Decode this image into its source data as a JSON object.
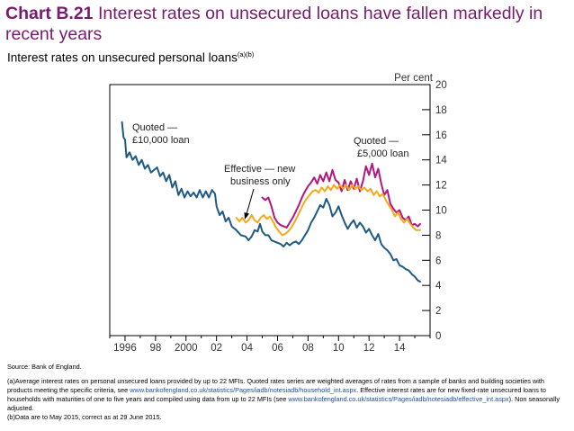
{
  "header": {
    "title_bold": "Chart B.21",
    "title_rest": " Interest rates on unsecured loans have fallen markedly in recent years",
    "subtitle": "Interest rates on unsecured personal loans",
    "subtitle_sup": "(a)(b)"
  },
  "chart_data": {
    "type": "line",
    "ylabel": "Per cent",
    "ylim": [
      0,
      20
    ],
    "yticks": [
      0,
      2,
      4,
      6,
      8,
      10,
      12,
      14,
      16,
      18,
      20
    ],
    "xlim": [
      1995,
      2016
    ],
    "xticks": [
      {
        "x": 1996,
        "label": "1996"
      },
      {
        "x": 1998,
        "label": "98"
      },
      {
        "x": 2000,
        "label": "2000"
      },
      {
        "x": 2002,
        "label": "02"
      },
      {
        "x": 2004,
        "label": "04"
      },
      {
        "x": 2006,
        "label": "06"
      },
      {
        "x": 2008,
        "label": "08"
      },
      {
        "x": 2010,
        "label": "10"
      },
      {
        "x": 2012,
        "label": "12"
      },
      {
        "x": 2014,
        "label": "14"
      }
    ],
    "annotations": {
      "quoted_10000": [
        "Quoted —",
        "£10,000 loan"
      ],
      "effective": [
        "Effective — new",
        "business only"
      ],
      "quoted_5000": [
        "Quoted —",
        "£5,000 loan"
      ]
    },
    "colors": {
      "quoted_10000": "#1f5a85",
      "quoted_5000": "#b0177f",
      "effective": "#f5a81c"
    },
    "series": [
      {
        "key": "quoted_10000",
        "points": [
          [
            1995.8,
            17.0
          ],
          [
            1995.9,
            15.8
          ],
          [
            1996.0,
            15.6
          ],
          [
            1996.1,
            14.2
          ],
          [
            1996.3,
            14.6
          ],
          [
            1996.5,
            14.0
          ],
          [
            1996.7,
            14.3
          ],
          [
            1996.9,
            13.6
          ],
          [
            1997.1,
            14.0
          ],
          [
            1997.3,
            13.3
          ],
          [
            1997.5,
            13.6
          ],
          [
            1997.7,
            13.0
          ],
          [
            1997.9,
            13.2
          ],
          [
            1998.1,
            13.4
          ],
          [
            1998.3,
            12.7
          ],
          [
            1998.5,
            13.0
          ],
          [
            1998.7,
            12.3
          ],
          [
            1998.9,
            12.8
          ],
          [
            1999.1,
            11.8
          ],
          [
            1999.3,
            12.3
          ],
          [
            1999.5,
            11.2
          ],
          [
            1999.7,
            11.7
          ],
          [
            1999.9,
            11.0
          ],
          [
            2000.1,
            11.5
          ],
          [
            2000.3,
            11.1
          ],
          [
            2000.5,
            11.4
          ],
          [
            2000.7,
            11.0
          ],
          [
            2000.9,
            11.6
          ],
          [
            2001.1,
            11.0
          ],
          [
            2001.3,
            11.5
          ],
          [
            2001.5,
            11.0
          ],
          [
            2001.7,
            11.6
          ],
          [
            2001.9,
            11.3
          ],
          [
            2002.0,
            10.3
          ],
          [
            2002.2,
            9.6
          ],
          [
            2002.4,
            9.9
          ],
          [
            2002.6,
            9.1
          ],
          [
            2002.8,
            9.4
          ],
          [
            2003.0,
            8.7
          ],
          [
            2003.3,
            8.4
          ],
          [
            2003.6,
            8.0
          ],
          [
            2003.9,
            7.9
          ],
          [
            2004.1,
            7.6
          ],
          [
            2004.3,
            7.9
          ],
          [
            2004.5,
            8.4
          ],
          [
            2004.7,
            8.3
          ],
          [
            2004.85,
            8.9
          ],
          [
            2005.0,
            8.3
          ],
          [
            2005.2,
            8.0
          ],
          [
            2005.4,
            8.0
          ],
          [
            2005.6,
            7.6
          ],
          [
            2005.8,
            7.5
          ],
          [
            2006.0,
            7.4
          ],
          [
            2006.2,
            7.3
          ],
          [
            2006.4,
            7.1
          ],
          [
            2006.6,
            7.4
          ],
          [
            2006.8,
            7.2
          ],
          [
            2007.0,
            7.4
          ],
          [
            2007.2,
            7.5
          ],
          [
            2007.4,
            7.3
          ],
          [
            2007.6,
            7.6
          ],
          [
            2007.8,
            8.0
          ],
          [
            2008.0,
            8.4
          ],
          [
            2008.2,
            9.0
          ],
          [
            2008.4,
            9.4
          ],
          [
            2008.6,
            9.9
          ],
          [
            2008.8,
            10.4
          ],
          [
            2009.0,
            10.2
          ],
          [
            2009.2,
            10.9
          ],
          [
            2009.4,
            10.4
          ],
          [
            2009.6,
            9.5
          ],
          [
            2009.8,
            9.8
          ],
          [
            2010.0,
            10.3
          ],
          [
            2010.2,
            9.6
          ],
          [
            2010.4,
            9.0
          ],
          [
            2010.6,
            8.5
          ],
          [
            2010.8,
            8.9
          ],
          [
            2011.0,
            9.2
          ],
          [
            2011.2,
            8.6
          ],
          [
            2011.4,
            9.0
          ],
          [
            2011.6,
            8.7
          ],
          [
            2011.8,
            8.2
          ],
          [
            2012.0,
            8.5
          ],
          [
            2012.2,
            8.0
          ],
          [
            2012.4,
            7.6
          ],
          [
            2012.6,
            8.1
          ],
          [
            2012.8,
            7.3
          ],
          [
            2013.0,
            7.0
          ],
          [
            2013.2,
            6.8
          ],
          [
            2013.4,
            6.5
          ],
          [
            2013.6,
            6.0
          ],
          [
            2013.8,
            6.1
          ],
          [
            2014.0,
            5.6
          ],
          [
            2014.2,
            5.5
          ],
          [
            2014.4,
            5.3
          ],
          [
            2014.6,
            5.2
          ],
          [
            2014.8,
            4.9
          ],
          [
            2015.0,
            4.7
          ],
          [
            2015.2,
            4.4
          ],
          [
            2015.35,
            4.3
          ]
        ]
      },
      {
        "key": "quoted_5000",
        "points": [
          [
            2005.0,
            11.0
          ],
          [
            2005.2,
            10.8
          ],
          [
            2005.4,
            11.0
          ],
          [
            2005.6,
            10.3
          ],
          [
            2005.8,
            9.4
          ],
          [
            2006.0,
            9.0
          ],
          [
            2006.2,
            8.8
          ],
          [
            2006.4,
            8.7
          ],
          [
            2006.6,
            8.6
          ],
          [
            2006.8,
            9.0
          ],
          [
            2007.0,
            9.4
          ],
          [
            2007.2,
            9.9
          ],
          [
            2007.4,
            10.4
          ],
          [
            2007.6,
            11.0
          ],
          [
            2007.8,
            11.5
          ],
          [
            2008.0,
            11.9
          ],
          [
            2008.2,
            12.2
          ],
          [
            2008.4,
            12.6
          ],
          [
            2008.6,
            12.1
          ],
          [
            2008.8,
            12.8
          ],
          [
            2009.0,
            12.3
          ],
          [
            2009.2,
            13.0
          ],
          [
            2009.4,
            12.3
          ],
          [
            2009.6,
            13.2
          ],
          [
            2009.8,
            12.4
          ],
          [
            2010.0,
            12.2
          ],
          [
            2010.2,
            11.5
          ],
          [
            2010.4,
            12.4
          ],
          [
            2010.6,
            11.6
          ],
          [
            2010.8,
            12.3
          ],
          [
            2011.0,
            11.7
          ],
          [
            2011.2,
            12.5
          ],
          [
            2011.4,
            11.5
          ],
          [
            2011.6,
            12.3
          ],
          [
            2011.8,
            13.5
          ],
          [
            2012.0,
            12.8
          ],
          [
            2012.2,
            13.7
          ],
          [
            2012.4,
            12.6
          ],
          [
            2012.6,
            13.3
          ],
          [
            2012.8,
            12.1
          ],
          [
            2013.0,
            11.2
          ],
          [
            2013.2,
            11.6
          ],
          [
            2013.4,
            10.5
          ],
          [
            2013.6,
            10.1
          ],
          [
            2013.8,
            9.8
          ],
          [
            2014.0,
            10.0
          ],
          [
            2014.2,
            9.4
          ],
          [
            2014.4,
            9.2
          ],
          [
            2014.6,
            9.5
          ],
          [
            2014.8,
            8.8
          ],
          [
            2015.0,
            8.9
          ],
          [
            2015.2,
            8.7
          ],
          [
            2015.35,
            8.9
          ]
        ]
      },
      {
        "key": "effective",
        "points": [
          [
            2003.3,
            9.4
          ],
          [
            2003.5,
            9.1
          ],
          [
            2003.7,
            9.4
          ],
          [
            2003.9,
            9.0
          ],
          [
            2004.1,
            9.2
          ],
          [
            2004.3,
            9.6
          ],
          [
            2004.5,
            9.2
          ],
          [
            2004.7,
            9.0
          ],
          [
            2004.9,
            9.4
          ],
          [
            2005.1,
            9.6
          ],
          [
            2005.3,
            9.3
          ],
          [
            2005.5,
            9.5
          ],
          [
            2005.7,
            9.1
          ],
          [
            2005.9,
            8.6
          ],
          [
            2006.1,
            8.3
          ],
          [
            2006.3,
            8.0
          ],
          [
            2006.5,
            8.1
          ],
          [
            2006.7,
            8.3
          ],
          [
            2006.9,
            8.6
          ],
          [
            2007.1,
            9.0
          ],
          [
            2007.3,
            9.5
          ],
          [
            2007.5,
            10.0
          ],
          [
            2007.7,
            10.5
          ],
          [
            2007.9,
            10.9
          ],
          [
            2008.1,
            11.2
          ],
          [
            2008.3,
            11.5
          ],
          [
            2008.5,
            11.6
          ],
          [
            2008.7,
            11.4
          ],
          [
            2008.9,
            11.8
          ],
          [
            2009.1,
            11.5
          ],
          [
            2009.3,
            11.9
          ],
          [
            2009.5,
            11.6
          ],
          [
            2009.7,
            12.0
          ],
          [
            2009.9,
            11.7
          ],
          [
            2010.1,
            12.0
          ],
          [
            2010.3,
            11.7
          ],
          [
            2010.5,
            12.0
          ],
          [
            2010.7,
            11.6
          ],
          [
            2010.9,
            12.0
          ],
          [
            2011.1,
            11.7
          ],
          [
            2011.3,
            11.9
          ],
          [
            2011.5,
            11.6
          ],
          [
            2011.7,
            11.8
          ],
          [
            2011.9,
            11.5
          ],
          [
            2012.1,
            11.7
          ],
          [
            2012.3,
            11.2
          ],
          [
            2012.5,
            11.5
          ],
          [
            2012.7,
            11.1
          ],
          [
            2012.9,
            11.3
          ],
          [
            2013.1,
            10.8
          ],
          [
            2013.3,
            10.4
          ],
          [
            2013.5,
            10.0
          ],
          [
            2013.7,
            9.5
          ],
          [
            2013.9,
            9.8
          ],
          [
            2014.1,
            9.3
          ],
          [
            2014.3,
            9.0
          ],
          [
            2014.5,
            9.3
          ],
          [
            2014.7,
            8.9
          ],
          [
            2014.9,
            8.6
          ],
          [
            2015.1,
            8.4
          ],
          [
            2015.35,
            8.4
          ]
        ]
      }
    ]
  },
  "footnotes": {
    "source": "Source: Bank of England.",
    "a_pre": "(a)Average interest rates on personal unsecured loans provided by up to 22 MFIs. Quoted rates series are weighted averages of rates from a sample of banks and building societies with products meeting the specific criteria, see ",
    "a_link1": "www.bankofengland.co.uk/statistics/Pages/iadb/notesiadb/household_int.aspx",
    "a_mid": ". Effective interest rates are for new fixed-rate unsecured loans to households with maturities of one to five years and compiled using data from up to 22 MFIs (see ",
    "a_link2": "www.bankofengland.co.uk/statistics/Pages/iadb/notesiadb/effective_int.aspx",
    "a_post": "). Non seasonally adjusted.",
    "b": "(b)Data are to May 2015, correct as at 29 June 2015."
  }
}
